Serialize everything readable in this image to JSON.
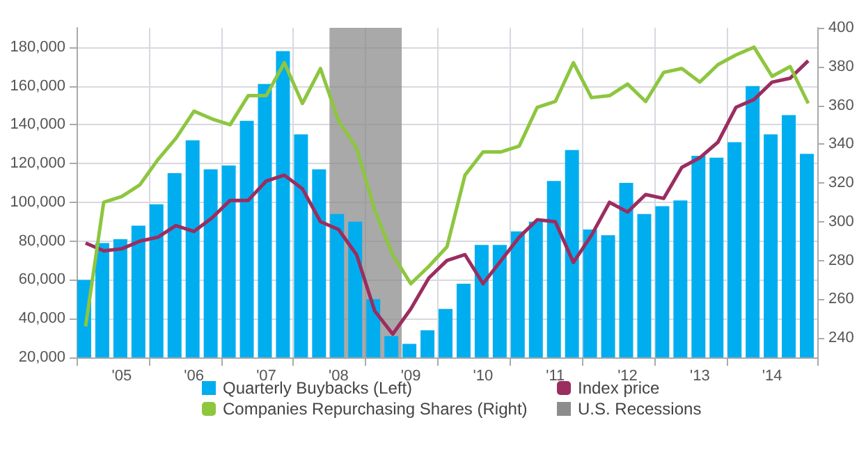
{
  "chart_data": {
    "type": "bar",
    "categories": [
      null,
      null,
      "'05",
      null,
      null,
      null,
      "'06",
      null,
      null,
      null,
      "'07",
      null,
      null,
      null,
      "'08",
      null,
      null,
      null,
      "'09",
      null,
      null,
      null,
      "'10",
      null,
      null,
      null,
      "'11",
      null,
      null,
      null,
      "'12",
      null,
      null,
      null,
      "'13",
      null,
      null,
      null,
      "'14",
      null,
      null
    ],
    "series": [
      {
        "name": "Quarterly Buybacks (Left)",
        "color": "#00aeef",
        "values": [
          60000,
          79000,
          81000,
          88000,
          99000,
          115000,
          132000,
          117000,
          119000,
          142000,
          161000,
          178000,
          135000,
          117000,
          94000,
          90000,
          50000,
          31000,
          27000,
          34000,
          45000,
          58000,
          78000,
          78000,
          85000,
          90000,
          111000,
          127000,
          86000,
          83000,
          110000,
          94000,
          98000,
          101000,
          124000,
          123000,
          131000,
          160000,
          135000,
          145000,
          125000
        ]
      },
      {
        "name": "Index price",
        "type": "line",
        "axis": "y2",
        "color": "#9b2d5f",
        "values": [
          289,
          285,
          286,
          290,
          292,
          298,
          295,
          302,
          311,
          311,
          321,
          324,
          317,
          300,
          296,
          283,
          254,
          242,
          255,
          271,
          280,
          283,
          268,
          280,
          292,
          301,
          300,
          279,
          293,
          310,
          305,
          314,
          312,
          328,
          333,
          341,
          359,
          363,
          372,
          374,
          383
        ]
      },
      {
        "name": "Companies Repurchasing Shares (Right)",
        "type": "line",
        "axis": "y2",
        "color": "#8dc63f",
        "values": [
          246,
          310,
          313,
          319,
          332,
          343,
          357,
          353,
          350,
          365,
          365,
          382,
          361,
          379,
          352,
          338,
          306,
          283,
          268,
          277,
          287,
          324,
          336,
          336,
          339,
          359,
          362,
          382,
          364,
          365,
          371,
          362,
          377,
          379,
          372,
          381,
          386,
          390,
          375,
          380,
          361
        ]
      }
    ],
    "bands": [
      {
        "axis": "x",
        "from": "'08",
        "to": "'09",
        "label": "U.S. Recessions",
        "color": "#8c8c8c"
      }
    ],
    "ylim": [
      20000,
      190000
    ],
    "yticks": [
      {
        "value": 20000,
        "label": "20,000"
      },
      {
        "value": 40000,
        "label": "40,000"
      },
      {
        "value": 60000,
        "label": "60,000"
      },
      {
        "value": 80000,
        "label": "80,000"
      },
      {
        "value": 100000,
        "label": "100,000"
      },
      {
        "value": 120000,
        "label": "120,000"
      },
      {
        "value": 140000,
        "label": "140,000"
      },
      {
        "value": 160000,
        "label": "160,000"
      },
      {
        "value": 180000,
        "label": "180,000"
      }
    ],
    "y2lim": [
      230,
      400
    ],
    "y2ticks": [
      240,
      260,
      280,
      300,
      320,
      340,
      360,
      380,
      400
    ],
    "grid": true,
    "legend": "bottom",
    "marker": "none",
    "line_style": "solid"
  }
}
